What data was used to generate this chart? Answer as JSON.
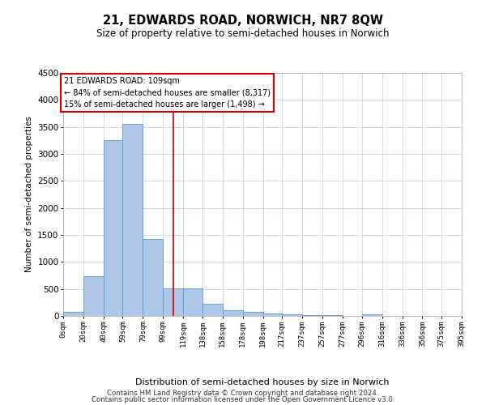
{
  "title": "21, EDWARDS ROAD, NORWICH, NR7 8QW",
  "subtitle": "Size of property relative to semi-detached houses in Norwich",
  "xlabel": "Distribution of semi-detached houses by size in Norwich",
  "ylabel": "Number of semi-detached properties",
  "footer_line1": "Contains HM Land Registry data © Crown copyright and database right 2024.",
  "footer_line2": "Contains public sector information licensed under the Open Government Licence v3.0.",
  "annotation_title": "21 EDWARDS ROAD: 109sqm",
  "annotation_line2": "← 84% of semi-detached houses are smaller (8,317)",
  "annotation_line3": "15% of semi-detached houses are larger (1,498) →",
  "property_sqm": 109,
  "bin_edges": [
    0,
    20,
    40,
    59,
    79,
    99,
    119,
    138,
    158,
    178,
    198,
    217,
    237,
    257,
    277,
    296,
    316,
    336,
    356,
    375,
    395
  ],
  "bin_labels": [
    "0sqm",
    "20sqm",
    "40sqm",
    "59sqm",
    "79sqm",
    "99sqm",
    "119sqm",
    "138sqm",
    "158sqm",
    "178sqm",
    "198sqm",
    "217sqm",
    "237sqm",
    "257sqm",
    "277sqm",
    "296sqm",
    "316sqm",
    "336sqm",
    "356sqm",
    "375sqm",
    "395sqm"
  ],
  "bar_values": [
    75,
    730,
    3250,
    3550,
    1420,
    510,
    510,
    220,
    110,
    75,
    45,
    30,
    20,
    10,
    5,
    30,
    5,
    5,
    5,
    5
  ],
  "bar_color": "#aec6e8",
  "bar_edgecolor": "#5b9bd5",
  "vline_color": "#cc0000",
  "annotation_box_edgecolor": "#cc0000",
  "background_color": "#ffffff",
  "grid_color": "#c8d4e8",
  "ylim": [
    0,
    4500
  ],
  "yticks": [
    0,
    500,
    1000,
    1500,
    2000,
    2500,
    3000,
    3500,
    4000,
    4500
  ]
}
